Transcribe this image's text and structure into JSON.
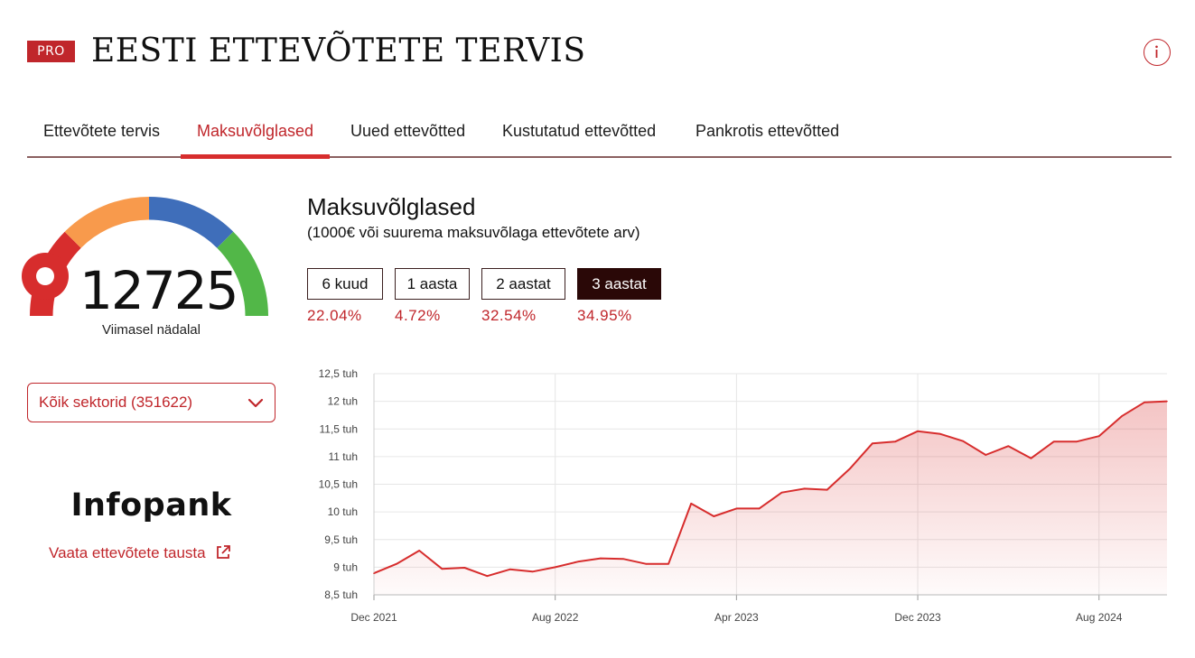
{
  "header": {
    "badge": "PRO",
    "title": "EESTI ETTEVÕTETE TERVIS",
    "info_icon": "info-icon"
  },
  "tabs": [
    {
      "label": "Ettevõtete tervis",
      "active": false
    },
    {
      "label": "Maksuvõlglased",
      "active": true
    },
    {
      "label": "Uued ettevõtted",
      "active": false
    },
    {
      "label": "Kustutatud ettevõtted",
      "active": false
    },
    {
      "label": "Pankrotis ettevõtted",
      "active": false
    }
  ],
  "gauge": {
    "value": "12725",
    "caption": "Viimasel nädalal",
    "segment_colors": [
      "#d72d2d",
      "#f89a4c",
      "#3f6eba",
      "#52b748"
    ],
    "needle_color": "#d72d2d"
  },
  "sector_select": {
    "value": "Kõik sektorid (351622)",
    "icon": "chevron-down-icon"
  },
  "brand": {
    "logo_text": "Infopank",
    "link_label": "Vaata ettevõtete tausta",
    "link_icon": "external-link-icon"
  },
  "panel": {
    "title": "Maksuvõlglased",
    "subtitle": "(1000€ või suurema maksuvõlaga ettevõtete arv)"
  },
  "periods": [
    {
      "label": "6 kuud",
      "change": "22.04%",
      "active": false
    },
    {
      "label": "1 aasta",
      "change": "4.72%",
      "active": false
    },
    {
      "label": "2 aastat",
      "change": "32.54%",
      "active": false
    },
    {
      "label": "3 aastat",
      "change": "34.95%",
      "active": true
    }
  ],
  "colors": {
    "accent": "#c0262b",
    "line": "#d72d2d",
    "active_button": "#2a0807"
  },
  "chart_data": {
    "type": "area",
    "title": "",
    "xlabel": "",
    "ylabel": "",
    "x_ticks": [
      "Dec 2021",
      "Aug 2022",
      "Apr 2023",
      "Dec 2023",
      "Aug 2024"
    ],
    "y_ticks": [
      "8,5 tuh",
      "9 tuh",
      "9,5 tuh",
      "10 tuh",
      "10,5 tuh",
      "11 tuh",
      "11,5 tuh",
      "12 tuh",
      "12,5 tuh"
    ],
    "ylim": [
      8500,
      12500
    ],
    "grid": true,
    "legend": "none",
    "series": [
      {
        "x": [
          "2021-12",
          "2022-01",
          "2022-02",
          "2022-03",
          "2022-04",
          "2022-05",
          "2022-06",
          "2022-07",
          "2022-08",
          "2022-09",
          "2022-10",
          "2022-11",
          "2022-12",
          "2023-01",
          "2023-02",
          "2023-03",
          "2023-04",
          "2023-05",
          "2023-06",
          "2023-07",
          "2023-08",
          "2023-09",
          "2023-10",
          "2023-11",
          "2023-12",
          "2024-01",
          "2024-02",
          "2024-03",
          "2024-04",
          "2024-05",
          "2024-06",
          "2024-07",
          "2024-08",
          "2024-09",
          "2024-10",
          "2024-11"
        ],
        "values": [
          8890,
          9060,
          9300,
          8970,
          8990,
          8840,
          8960,
          8920,
          9000,
          9100,
          9160,
          9150,
          9060,
          9060,
          10150,
          9920,
          10060,
          10060,
          10350,
          10420,
          10400,
          10780,
          11240,
          11270,
          11460,
          11410,
          11280,
          11030,
          11190,
          10970,
          11270,
          11270,
          11370,
          11730,
          11980,
          12000
        ]
      }
    ]
  }
}
